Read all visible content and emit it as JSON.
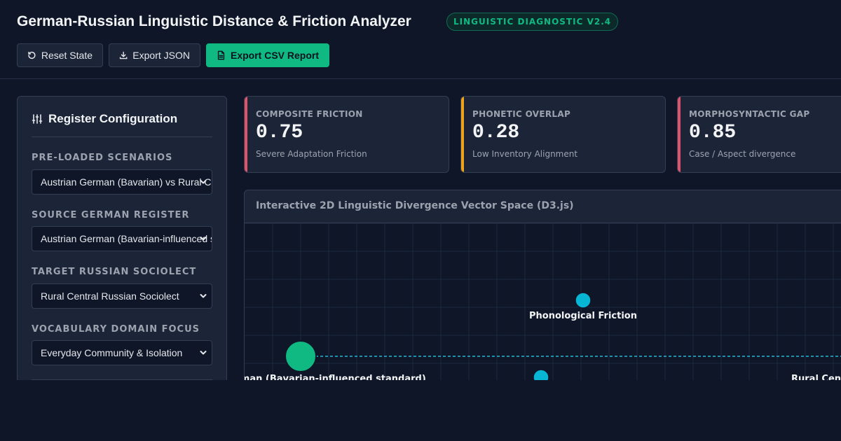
{
  "header": {
    "title": "German-Russian Linguistic Distance & Friction Analyzer",
    "badge": "LINGUISTIC DIAGNOSTIC V2.4"
  },
  "toolbar": {
    "reset_label": "Reset State",
    "export_json_label": "Export JSON",
    "export_csv_label": "Export CSV Report"
  },
  "config": {
    "title": "Register Configuration",
    "fields": [
      {
        "label": "PRE-LOADED SCENARIOS",
        "value": "Austrian German (Bavarian) vs Rural Central"
      },
      {
        "label": "SOURCE GERMAN REGISTER",
        "value": "Austrian German (Bavarian-influenced standard)"
      },
      {
        "label": "TARGET RUSSIAN SOCIOLECT",
        "value": "Rural Central Russian Sociolect"
      },
      {
        "label": "VOCABULARY DOMAIN FOCUS",
        "value": "Everyday Community & Isolation"
      }
    ]
  },
  "metrics": [
    {
      "label": "COMPOSITE FRICTION",
      "value": "0.75",
      "sub": "Severe Adaptation Friction",
      "color": "#e0546b"
    },
    {
      "label": "PHONETIC OVERLAP",
      "value": "0.28",
      "sub": "Low Inventory Alignment",
      "color": "#f0a21a"
    },
    {
      "label": "MORPHOSYNTACTIC GAP",
      "value": "0.85",
      "sub": "Case / Aspect divergence",
      "color": "#e0546b"
    }
  ],
  "plot": {
    "title": "Interactive 2D Linguistic Divergence Vector Space (D3.js)",
    "nodes": {
      "phonological": "Phonological Friction",
      "source": "Austrian German (Bavarian-influenced standard)",
      "target": "Rural Central Russian Sociolect"
    },
    "colors": {
      "source": "#10b981",
      "friction": "#06b6d4",
      "link": "#22b8d8"
    }
  },
  "colors": {
    "accent": "#10b981",
    "background": "#0e1628",
    "panel": "#1c2538"
  }
}
